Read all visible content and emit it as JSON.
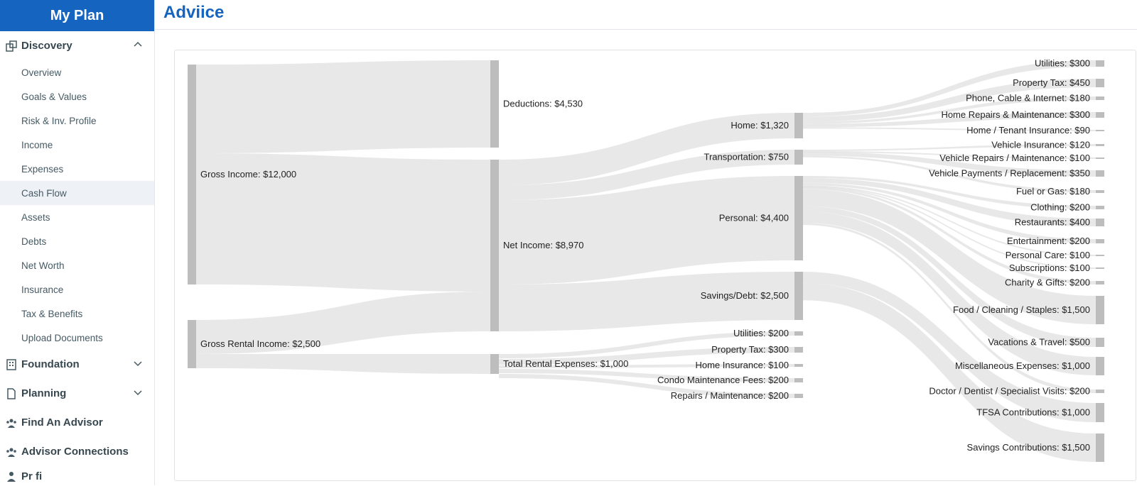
{
  "brand": "My Plan",
  "page_title": "Adviice",
  "sidebar": {
    "discovery": {
      "label": "Discovery",
      "items": [
        "Overview",
        "Goals & Values",
        "Risk & Inv. Profile",
        "Income",
        "Expenses",
        "Cash Flow",
        "Assets",
        "Debts",
        "Net Worth",
        "Insurance",
        "Tax & Benefits",
        "Upload Documents"
      ],
      "active": "Cash Flow"
    },
    "foundation": "Foundation",
    "planning": "Planning",
    "find_advisor": "Find An Advisor",
    "advisor_connections": "Advisor Connections",
    "partial": "Pr fi"
  },
  "sankey": {
    "col0": [
      {
        "label": "Gross Income: $12,000"
      },
      {
        "label": "Gross Rental Income: $2,500"
      }
    ],
    "col1": [
      {
        "label": "Deductions: $4,530"
      },
      {
        "label": "Net Income: $8,970"
      },
      {
        "label": "Total Rental Expenses: $1,000"
      }
    ],
    "col2": [
      {
        "label": "Home: $1,320"
      },
      {
        "label": "Transportation: $750"
      },
      {
        "label": "Personal: $4,400"
      },
      {
        "label": "Savings/Debt: $2,500"
      },
      {
        "label": "Utilities: $200"
      },
      {
        "label": "Property Tax: $300"
      },
      {
        "label": "Home Insurance: $100"
      },
      {
        "label": "Condo Maintenance Fees: $200"
      },
      {
        "label": "Repairs / Maintenance: $200"
      }
    ],
    "col3": [
      {
        "label": "Utilities: $300"
      },
      {
        "label": "Property Tax: $450"
      },
      {
        "label": "Phone, Cable & Internet: $180"
      },
      {
        "label": "Home Repairs & Maintenance: $300"
      },
      {
        "label": "Home / Tenant Insurance: $90"
      },
      {
        "label": "Vehicle Insurance: $120"
      },
      {
        "label": "Vehicle Repairs / Maintenance: $100"
      },
      {
        "label": "Vehicle Payments / Replacement: $350"
      },
      {
        "label": "Fuel or Gas: $180"
      },
      {
        "label": "Clothing: $200"
      },
      {
        "label": "Restaurants: $400"
      },
      {
        "label": "Entertainment: $200"
      },
      {
        "label": "Personal Care: $100"
      },
      {
        "label": "Subscriptions: $100"
      },
      {
        "label": "Charity & Gifts: $200"
      },
      {
        "label": "Food / Cleaning / Staples: $1,500"
      },
      {
        "label": "Vacations & Travel: $500"
      },
      {
        "label": "Miscellaneous Expenses: $1,000"
      },
      {
        "label": "Doctor / Dentist / Specialist Visits: $200"
      },
      {
        "label": "TFSA Contributions: $1,000"
      },
      {
        "label": "Savings Contributions: $1,500"
      }
    ]
  },
  "colors": {
    "brand": "#1565c0",
    "node": "#bdbdbd",
    "link": "#e0e0e0",
    "active_bg": "#eef2f7"
  }
}
